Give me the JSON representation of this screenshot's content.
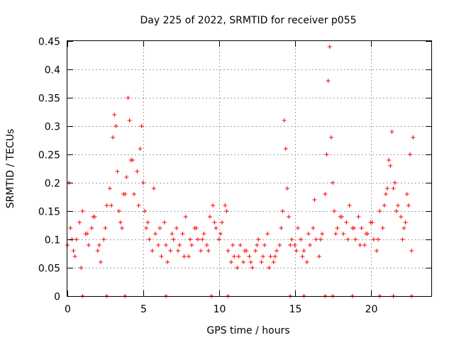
{
  "chart_data": {
    "type": "scatter",
    "title": "Day 225 of 2022, SRMTID for receiver p055",
    "xlabel": "GPS time / hours",
    "ylabel": "SRMTID / TECUs",
    "xlim": [
      0,
      24
    ],
    "ylim": [
      0,
      0.45
    ],
    "xticks": [
      0,
      5,
      10,
      15,
      20
    ],
    "xtick_labels": [
      "0",
      "5",
      "10",
      "15",
      "20"
    ],
    "yticks": [
      0,
      0.05,
      0.1,
      0.15,
      0.2,
      0.25,
      0.3,
      0.35,
      0.4,
      0.45
    ],
    "ytick_labels": [
      "0",
      "0.05",
      "0.1",
      "0.15",
      "0.2",
      "0.25",
      "0.3",
      "0.35",
      "0.4",
      "0.45"
    ],
    "grid": true,
    "marker": "+",
    "marker_color": "#ff0000",
    "series": [
      {
        "name": "SRMTID",
        "x": [
          0.0,
          0.2,
          0.4,
          0.6,
          0.8,
          1.0,
          1.2,
          1.4,
          1.6,
          1.8,
          2.0,
          2.2,
          2.4,
          2.6,
          2.8,
          3.0,
          3.1,
          3.2,
          3.3,
          3.4,
          3.6,
          3.8,
          3.9,
          4.0,
          4.1,
          4.2,
          4.4,
          4.6,
          4.8,
          4.9,
          5.0,
          5.1,
          5.2,
          5.4,
          5.6,
          5.8,
          6.0,
          6.2,
          6.4,
          6.6,
          6.8,
          7.0,
          7.2,
          7.4,
          7.6,
          7.8,
          8.0,
          8.2,
          8.4,
          8.6,
          8.8,
          9.0,
          9.2,
          9.4,
          9.6,
          9.8,
          10.0,
          10.2,
          10.4,
          10.6,
          10.8,
          11.0,
          11.2,
          11.4,
          11.6,
          11.8,
          12.0,
          12.2,
          12.4,
          12.6,
          12.8,
          13.0,
          13.2,
          13.4,
          13.6,
          13.8,
          14.0,
          14.2,
          14.3,
          14.4,
          14.5,
          14.6,
          14.8,
          15.0,
          15.2,
          15.4,
          15.6,
          15.8,
          16.0,
          16.2,
          16.4,
          16.6,
          16.8,
          17.0,
          17.1,
          17.2,
          17.3,
          17.4,
          17.5,
          17.6,
          17.8,
          18.0,
          18.2,
          18.4,
          18.6,
          18.8,
          19.0,
          19.2,
          19.4,
          19.6,
          19.8,
          20.0,
          20.2,
          20.4,
          20.6,
          20.8,
          21.0,
          21.2,
          21.4,
          21.6,
          21.8,
          22.0,
          22.2,
          22.4,
          22.6,
          22.8,
          0.1,
          0.3,
          0.5,
          0.9,
          1.3,
          1.7,
          2.1,
          2.5,
          2.9,
          3.5,
          3.7,
          4.3,
          4.7,
          5.3,
          5.7,
          6.1,
          6.5,
          6.9,
          7.3,
          7.7,
          8.1,
          8.5,
          8.9,
          9.3,
          9.7,
          10.1,
          10.5,
          10.9,
          11.3,
          11.7,
          12.1,
          12.5,
          12.9,
          13.3,
          13.7,
          14.1,
          14.7,
          15.1,
          15.5,
          15.9,
          16.3,
          16.7,
          17.7,
          18.1,
          18.5,
          18.9,
          19.3,
          19.7,
          20.1,
          20.5,
          20.9,
          21.1,
          21.3,
          21.5,
          21.7,
          22.1,
          22.3,
          22.5,
          22.7,
          1.0,
          2.6,
          3.8,
          6.5,
          9.5,
          10.6,
          14.7,
          15.6,
          17.0,
          17.5,
          18.8,
          20.6,
          21.5,
          22.7
        ],
        "y": [
          0.09,
          0.12,
          0.08,
          0.1,
          0.13,
          0.15,
          0.11,
          0.09,
          0.12,
          0.14,
          0.08,
          0.06,
          0.1,
          0.16,
          0.19,
          0.28,
          0.32,
          0.3,
          0.22,
          0.15,
          0.12,
          0.18,
          0.21,
          0.35,
          0.31,
          0.24,
          0.18,
          0.22,
          0.26,
          0.3,
          0.2,
          0.15,
          0.12,
          0.1,
          0.08,
          0.11,
          0.09,
          0.07,
          0.13,
          0.06,
          0.08,
          0.1,
          0.12,
          0.09,
          0.11,
          0.14,
          0.07,
          0.09,
          0.12,
          0.1,
          0.08,
          0.11,
          0.09,
          0.14,
          0.16,
          0.12,
          0.1,
          0.13,
          0.16,
          0.08,
          0.06,
          0.07,
          0.05,
          0.09,
          0.06,
          0.08,
          0.07,
          0.05,
          0.08,
          0.1,
          0.06,
          0.09,
          0.11,
          0.07,
          0.06,
          0.08,
          0.09,
          0.15,
          0.31,
          0.26,
          0.19,
          0.14,
          0.1,
          0.09,
          0.12,
          0.1,
          0.08,
          0.06,
          0.09,
          0.12,
          0.1,
          0.07,
          0.11,
          0.18,
          0.25,
          0.38,
          0.44,
          0.28,
          0.2,
          0.15,
          0.12,
          0.14,
          0.11,
          0.13,
          0.16,
          0.12,
          0.1,
          0.14,
          0.12,
          0.09,
          0.11,
          0.13,
          0.1,
          0.08,
          0.15,
          0.12,
          0.18,
          0.24,
          0.29,
          0.2,
          0.16,
          0.14,
          0.12,
          0.18,
          0.25,
          0.28,
          0.2,
          0.1,
          0.07,
          0.05,
          0.11,
          0.14,
          0.09,
          0.12,
          0.16,
          0.13,
          0.18,
          0.24,
          0.16,
          0.13,
          0.19,
          0.12,
          0.09,
          0.11,
          0.08,
          0.07,
          0.1,
          0.12,
          0.1,
          0.08,
          0.13,
          0.11,
          0.15,
          0.09,
          0.07,
          0.08,
          0.06,
          0.09,
          0.07,
          0.05,
          0.07,
          0.12,
          0.09,
          0.08,
          0.07,
          0.11,
          0.17,
          0.1,
          0.11,
          0.14,
          0.1,
          0.12,
          0.09,
          0.11,
          0.13,
          0.1,
          0.16,
          0.19,
          0.23,
          0.19,
          0.15,
          0.1,
          0.13,
          0.16,
          0.08,
          0.0,
          0.0,
          0.0,
          0.0,
          0.0,
          0.0,
          0.0,
          0.0,
          0.0,
          0.0,
          0.0,
          0.0,
          0.0,
          0.0
        ]
      }
    ]
  }
}
